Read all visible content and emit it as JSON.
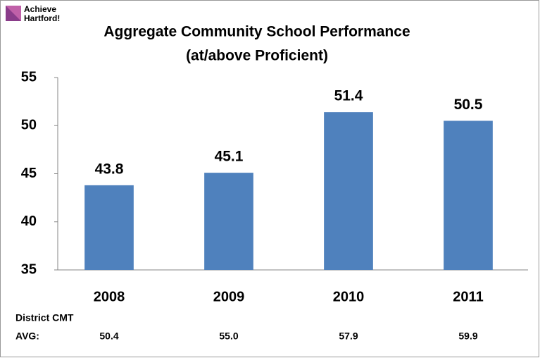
{
  "logo": [
    "Achieve",
    "Hartford!"
  ],
  "chart_data": {
    "type": "bar",
    "title": [
      "Aggregate Community School Performance",
      "(at/above Proficient)"
    ],
    "categories": [
      "2008",
      "2009",
      "2010",
      "2011"
    ],
    "values": [
      43.8,
      45.1,
      51.4,
      50.5
    ],
    "color": "#4f81bd",
    "ylim": [
      35,
      55
    ],
    "yticks": [
      35,
      40,
      45,
      50,
      55
    ],
    "grid": false,
    "district_label": [
      "District CMT",
      "AVG:"
    ],
    "district_values": [
      "50.4",
      "55.0",
      "57.9",
      "59.9"
    ]
  }
}
